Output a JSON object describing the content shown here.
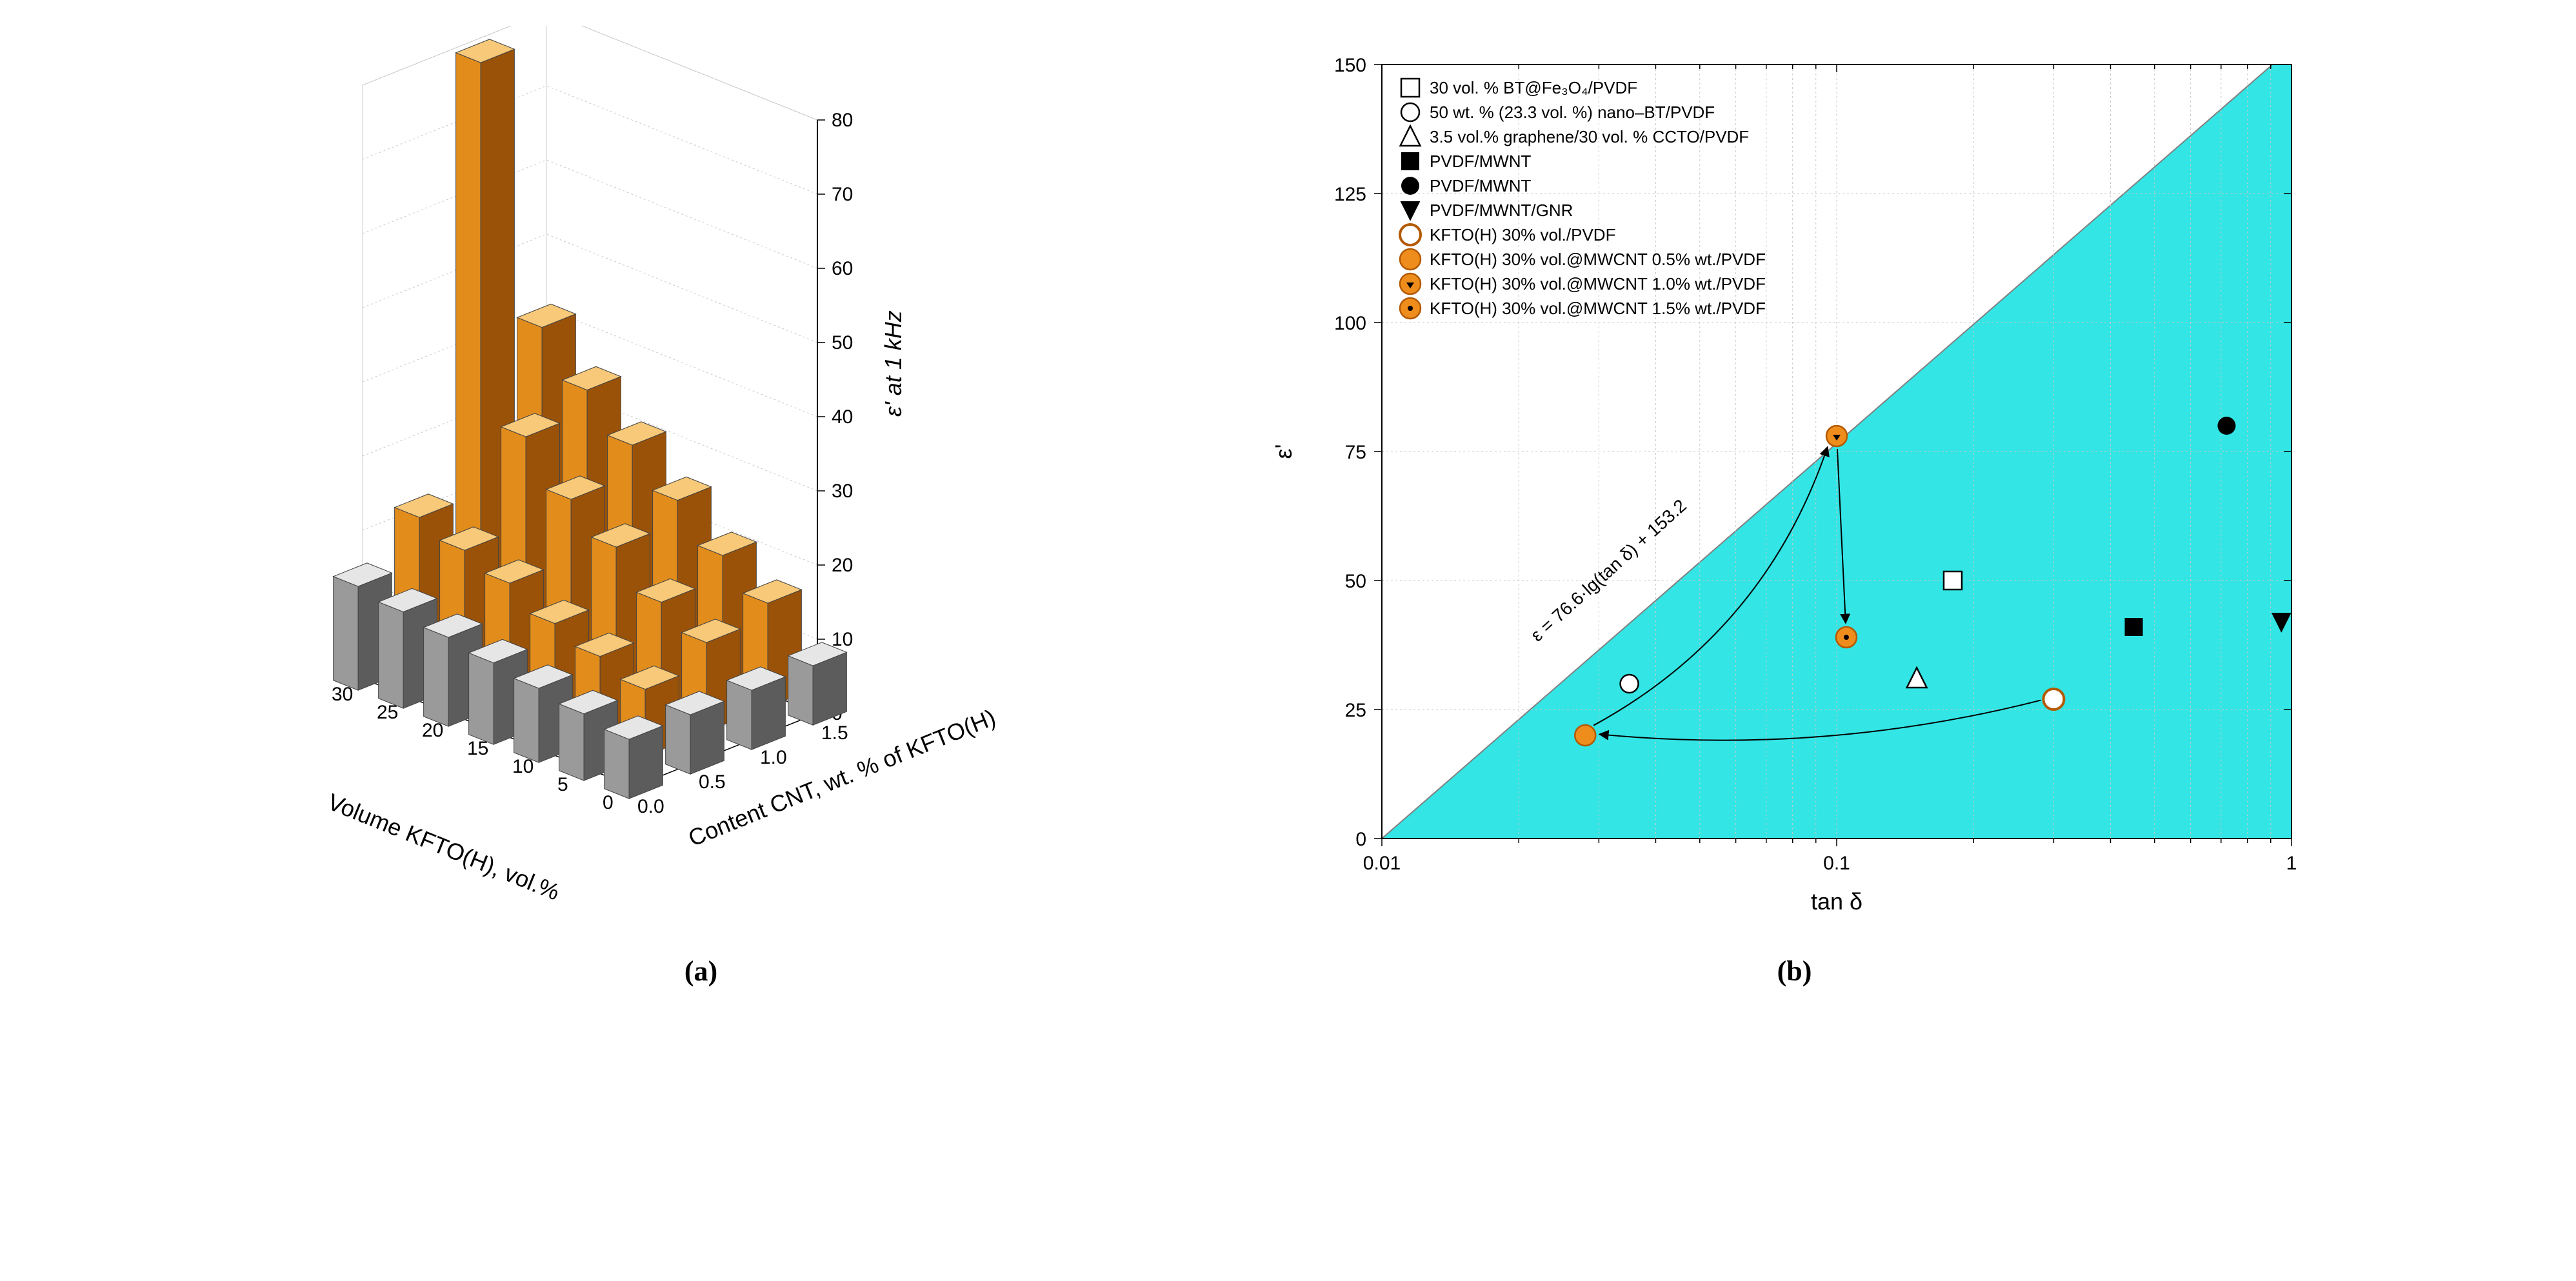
{
  "captions": {
    "a": "(a)",
    "b": "(b)"
  },
  "panel_a": {
    "type": "3d-bar",
    "title": null,
    "x_axis": {
      "label": "Volume KFTO(H), vol.%",
      "values": [
        0,
        5,
        10,
        15,
        20,
        25,
        30
      ],
      "label_fontsize": 34
    },
    "y_axis": {
      "label": "Content CNT, wt. % of KFTO(H)",
      "values": [
        0.0,
        0.5,
        1.0,
        1.5
      ],
      "label_fontsize": 34
    },
    "z_axis": {
      "label": "ε' at 1 kHz",
      "ticks": [
        0,
        10,
        20,
        30,
        40,
        50,
        60,
        70,
        80
      ],
      "label_fontsize": 36,
      "label_style": "italic"
    },
    "colors": {
      "bar_orange_light": "#f7c978",
      "bar_orange": "#e28c1c",
      "bar_orange_dark": "#9a5208",
      "bar_gray_light": "#e6e6e6",
      "bar_gray": "#9a9a9a",
      "bar_gray_dark": "#5c5c5c",
      "edge": "#444444",
      "panel_bg": "#ffffff",
      "grid": "#cccccc"
    },
    "bar_width": 0.55,
    "bars": [
      {
        "vol": 0,
        "cnt": 0.0,
        "eps": 8,
        "gray": true
      },
      {
        "vol": 5,
        "cnt": 0.0,
        "eps": 9,
        "gray": true
      },
      {
        "vol": 10,
        "cnt": 0.0,
        "eps": 10,
        "gray": true
      },
      {
        "vol": 15,
        "cnt": 0.0,
        "eps": 11,
        "gray": true
      },
      {
        "vol": 20,
        "cnt": 0.0,
        "eps": 12,
        "gray": true
      },
      {
        "vol": 25,
        "cnt": 0.0,
        "eps": 13,
        "gray": true
      },
      {
        "vol": 30,
        "cnt": 0.0,
        "eps": 14,
        "gray": true
      },
      {
        "vol": 0,
        "cnt": 0.5,
        "eps": 8,
        "gray": true
      },
      {
        "vol": 5,
        "cnt": 0.5,
        "eps": 9,
        "gray": false
      },
      {
        "vol": 10,
        "cnt": 0.5,
        "eps": 11,
        "gray": false
      },
      {
        "vol": 15,
        "cnt": 0.5,
        "eps": 13,
        "gray": false
      },
      {
        "vol": 20,
        "cnt": 0.5,
        "eps": 16,
        "gray": false
      },
      {
        "vol": 25,
        "cnt": 0.5,
        "eps": 18,
        "gray": false
      },
      {
        "vol": 30,
        "cnt": 0.5,
        "eps": 20,
        "gray": false
      },
      {
        "vol": 0,
        "cnt": 1.0,
        "eps": 8,
        "gray": true
      },
      {
        "vol": 5,
        "cnt": 1.0,
        "eps": 12,
        "gray": false
      },
      {
        "vol": 10,
        "cnt": 1.0,
        "eps": 15,
        "gray": false
      },
      {
        "vol": 15,
        "cnt": 1.0,
        "eps": 20,
        "gray": false
      },
      {
        "vol": 20,
        "cnt": 1.0,
        "eps": 24,
        "gray": false
      },
      {
        "vol": 25,
        "cnt": 1.0,
        "eps": 30,
        "gray": false
      },
      {
        "vol": 30,
        "cnt": 1.0,
        "eps": 78,
        "gray": false
      },
      {
        "vol": 0,
        "cnt": 1.5,
        "eps": 8,
        "gray": true
      },
      {
        "vol": 5,
        "cnt": 1.5,
        "eps": 14,
        "gray": false
      },
      {
        "vol": 10,
        "cnt": 1.5,
        "eps": 18,
        "gray": false
      },
      {
        "vol": 15,
        "cnt": 1.5,
        "eps": 23,
        "gray": false
      },
      {
        "vol": 20,
        "cnt": 1.5,
        "eps": 28,
        "gray": false
      },
      {
        "vol": 25,
        "cnt": 1.5,
        "eps": 33,
        "gray": false
      },
      {
        "vol": 30,
        "cnt": 1.5,
        "eps": 39,
        "gray": false
      }
    ]
  },
  "panel_b": {
    "type": "scatter",
    "x_axis": {
      "label": "tan δ",
      "scale": "log",
      "lim": [
        0.01,
        1
      ],
      "ticks": [
        0.01,
        0.1,
        1
      ],
      "label_fontsize": 40
    },
    "y_axis": {
      "label": "ε'",
      "scale": "linear",
      "lim": [
        0,
        150
      ],
      "tick_step": 25,
      "label_fontsize": 44
    },
    "colors": {
      "region_fill": "#33e5e5",
      "region_line": "#808080",
      "grid": "#c8c8c8",
      "frame": "#000000",
      "orange_fill": "#ef8d1c",
      "orange_stroke": "#b35900",
      "black": "#000000",
      "white": "#ffffff"
    },
    "region_equation": "ε = 76.6·lg(tan δ) + 153.2",
    "legend": [
      {
        "marker": "open-square",
        "label": "30 vol. % BT@Fe₃O₄/PVDF"
      },
      {
        "marker": "open-circle",
        "label": "50 wt. % (23.3 vol. %) nano–BT/PVDF"
      },
      {
        "marker": "open-triangle",
        "label": "3.5 vol.% graphene/30 vol. % CCTO/PVDF"
      },
      {
        "marker": "filled-square",
        "label": "PVDF/MWNT"
      },
      {
        "marker": "filled-circle",
        "label": "PVDF/MWNT"
      },
      {
        "marker": "filled-down-tri",
        "label": "PVDF/MWNT/GNR"
      },
      {
        "marker": "orange-open",
        "label": "KFTO(H) 30% vol./PVDF"
      },
      {
        "marker": "orange-filled",
        "label": "KFTO(H) 30% vol.@MWCNT 0.5% wt./PVDF"
      },
      {
        "marker": "orange-arrowtip",
        "label": "KFTO(H) 30% vol.@MWCNT 1.0% wt./PVDF"
      },
      {
        "marker": "orange-dot",
        "label": "KFTO(H) 30% vol.@MWCNT 1.5% wt./PVDF"
      }
    ],
    "points": [
      {
        "marker": "open-square",
        "x": 0.18,
        "y": 50
      },
      {
        "marker": "open-circle",
        "x": 0.035,
        "y": 30
      },
      {
        "marker": "open-triangle",
        "x": 0.15,
        "y": 31
      },
      {
        "marker": "filled-square",
        "x": 0.45,
        "y": 41
      },
      {
        "marker": "filled-circle",
        "x": 0.72,
        "y": 80
      },
      {
        "marker": "filled-down-tri",
        "x": 0.95,
        "y": 42
      },
      {
        "marker": "orange-open",
        "x": 0.3,
        "y": 27
      },
      {
        "marker": "orange-filled",
        "x": 0.028,
        "y": 20
      },
      {
        "marker": "orange-arrowtip",
        "x": 0.1,
        "y": 78
      },
      {
        "marker": "orange-dot",
        "x": 0.105,
        "y": 39
      }
    ],
    "arrows": [
      {
        "from_idx": 6,
        "to_idx": 7,
        "curve": -60
      },
      {
        "from_idx": 7,
        "to_idx": 8,
        "curve": 110
      },
      {
        "from_idx": 8,
        "to_idx": 9,
        "curve": 0
      }
    ],
    "marker_size": 14
  }
}
